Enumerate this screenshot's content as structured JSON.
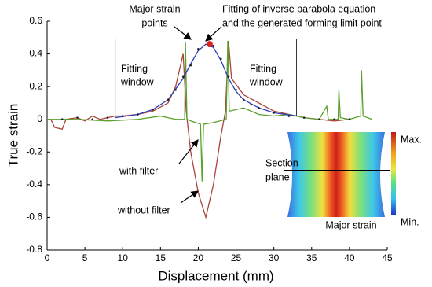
{
  "chart_data": {
    "type": "line",
    "xlabel": "Displacement (mm)",
    "ylabel": "True strain",
    "xlim": [
      0,
      45
    ],
    "xticks": [
      0,
      5,
      10,
      15,
      20,
      25,
      30,
      35,
      40,
      45
    ],
    "ylim": [
      -0.8,
      0.6
    ],
    "yticks": [
      -0.8,
      -0.6,
      -0.4,
      -0.2,
      0,
      0.2,
      0.4,
      0.6
    ],
    "fitting_window": [
      9,
      33
    ],
    "series": [
      {
        "type": "line",
        "color": "#a8443a",
        "x": [
          0.5,
          1,
          2,
          2.5,
          4,
          5,
          6,
          7,
          8,
          9,
          10,
          12,
          14,
          16,
          17,
          18,
          18.4,
          19,
          20,
          21,
          22,
          23,
          23.6,
          24,
          24.4,
          26,
          28,
          30,
          32,
          34,
          36,
          38,
          40
        ],
        "values": [
          0,
          -0.05,
          -0.06,
          0,
          0.01,
          -0.01,
          0.02,
          0,
          0.01,
          0.02,
          0.02,
          0.03,
          0.05,
          0.1,
          0.2,
          0.4,
          0.05,
          -0.2,
          -0.45,
          -0.6,
          -0.4,
          -0.1,
          0.05,
          0.48,
          0.25,
          0.15,
          0.1,
          0.05,
          0.03,
          0.01,
          0,
          -0.01,
          0
        ]
      },
      {
        "type": "line",
        "color": "#5aa02c",
        "x": [
          0,
          4,
          8,
          12,
          15,
          17,
          18.2,
          18.3,
          18.5,
          19,
          20.3,
          20.5,
          20.7,
          22,
          23.7,
          23.9,
          24.1,
          26,
          28,
          30,
          32,
          34,
          36,
          37,
          37.2,
          38.5,
          38.6,
          38.8,
          40,
          41.5,
          41.6,
          41.8,
          43
        ],
        "values": [
          0,
          0,
          -0.01,
          0,
          0.02,
          0,
          0,
          0.47,
          0,
          -0.01,
          -0.03,
          -0.38,
          -0.03,
          -0.02,
          0,
          0.48,
          0.05,
          0.07,
          0.03,
          0.02,
          0.03,
          0.01,
          0,
          0.08,
          0,
          0,
          0.18,
          0.01,
          0,
          0.02,
          0.3,
          0.02,
          0
        ]
      },
      {
        "type": "line",
        "color": "#2b3db8",
        "x": [
          9,
          12,
          14,
          16,
          18,
          19,
          20,
          21,
          22,
          23,
          24,
          25,
          26,
          28,
          30,
          33
        ],
        "values": [
          0.01,
          0.03,
          0.06,
          0.12,
          0.25,
          0.34,
          0.42,
          0.46,
          0.44,
          0.36,
          0.25,
          0.17,
          0.12,
          0.07,
          0.04,
          0.02
        ]
      },
      {
        "type": "scatter",
        "color": "#222222",
        "x": [
          2,
          4,
          6,
          8,
          10,
          12,
          14,
          16,
          17,
          18,
          19,
          20,
          22,
          23,
          24,
          25,
          26,
          27,
          28,
          30,
          32,
          34,
          36,
          38,
          40
        ],
        "values": [
          0,
          0.01,
          0,
          0.01,
          0.02,
          0.03,
          0.06,
          0.12,
          0.18,
          0.26,
          0.33,
          0.43,
          0.45,
          0.37,
          0.26,
          0.18,
          0.12,
          0.09,
          0.07,
          0.04,
          0.02,
          0.01,
          0,
          0,
          0
        ]
      },
      {
        "type": "scatter",
        "color": "#e02020",
        "x": [
          21.5
        ],
        "values": [
          0.46
        ]
      }
    ],
    "annotations": {
      "major_points": [
        "Major strain",
        "points"
      ],
      "fitting": [
        "Fitting of inverse parabola equation",
        "and the generated forming limit point"
      ],
      "window_left": [
        "Fitting",
        "window"
      ],
      "window_right": [
        "Fitting",
        "window"
      ],
      "with_filter": "with filter",
      "without_filter": "without filter",
      "section_plane": [
        "Section",
        "plane"
      ],
      "inset_label": "Major strain",
      "max": "Max.",
      "min": "Min."
    }
  }
}
